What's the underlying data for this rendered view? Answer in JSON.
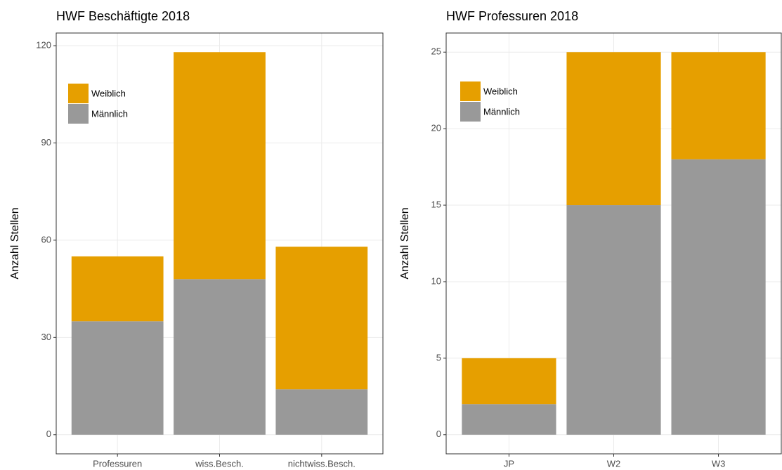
{
  "chart_data": [
    {
      "type": "bar",
      "stacked": true,
      "title": "HWF Beschäftigte 2018",
      "y_label": "Anzahl Stellen",
      "categories": [
        "Professuren",
        "wiss.Besch.",
        "nichtwiss.Besch."
      ],
      "series": [
        {
          "name": "Männlich",
          "color": "#999999",
          "values": [
            35,
            48,
            14
          ]
        },
        {
          "name": "Weiblich",
          "color": "#E69F00",
          "values": [
            20,
            70,
            44
          ]
        }
      ],
      "ylim": [
        -5.9,
        123.9
      ],
      "yticks": [
        0,
        30,
        60,
        90,
        120
      ],
      "grid": true,
      "legend": "top-left"
    },
    {
      "type": "bar",
      "stacked": true,
      "title": "HWF Professuren 2018",
      "y_label": "Anzahl Stellen",
      "categories": [
        "JP",
        "W2",
        "W3"
      ],
      "series": [
        {
          "name": "Männlich",
          "color": "#999999",
          "values": [
            2,
            15,
            18
          ]
        },
        {
          "name": "Weiblich",
          "color": "#E69F00",
          "values": [
            3,
            10,
            7
          ]
        }
      ],
      "ylim": [
        -1.25,
        26.25
      ],
      "yticks": [
        0,
        5,
        10,
        15,
        20,
        25
      ],
      "grid": true,
      "legend": "top-left"
    }
  ]
}
